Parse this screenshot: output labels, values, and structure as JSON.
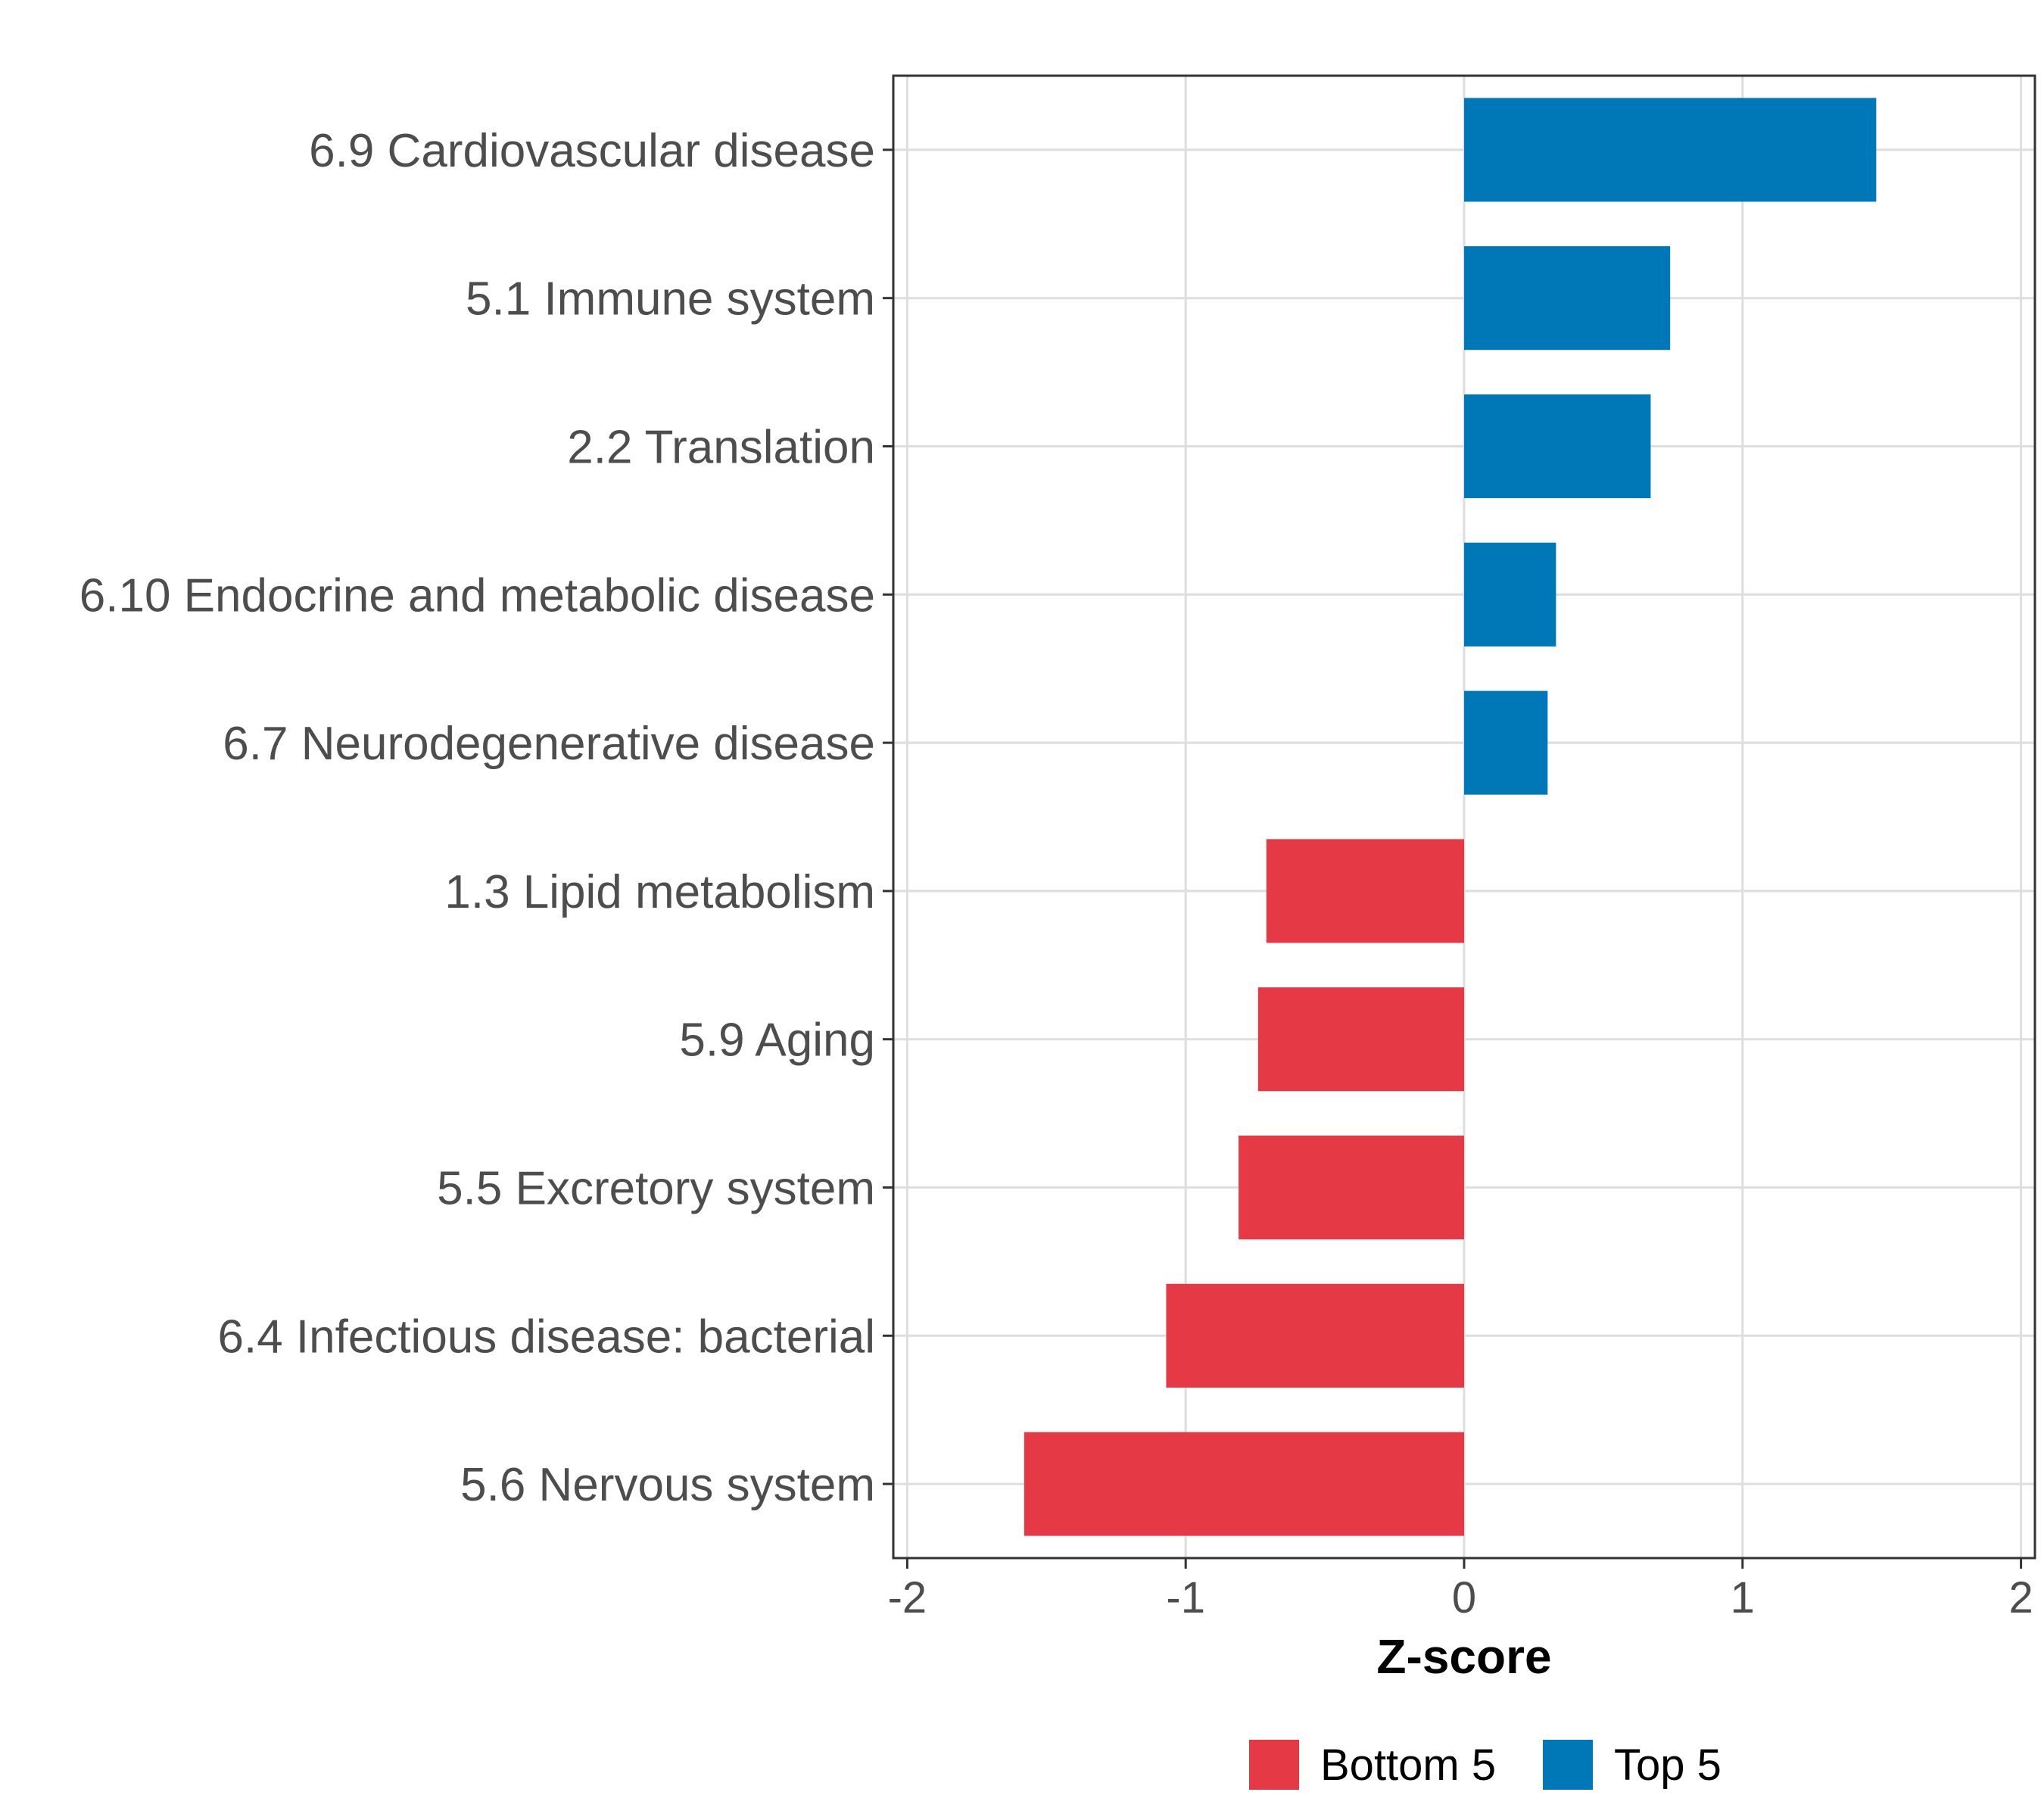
{
  "chart_data": {
    "type": "bar",
    "orientation": "horizontal",
    "title": "",
    "xlabel": "Z-score",
    "ylabel": "",
    "xlim": [
      -2.05,
      2.05
    ],
    "xticks": [
      -2,
      -1,
      0,
      1,
      2
    ],
    "xtick_labels": [
      "-2",
      "-1",
      "0",
      "1",
      "2"
    ],
    "grid": true,
    "legend_position": "bottom",
    "categories": [
      "6.9 Cardiovascular disease",
      "5.1 Immune system",
      "2.2 Translation",
      "6.10 Endocrine and metabolic disease",
      "6.7 Neurodegenerative disease",
      "1.3 Lipid metabolism",
      "5.9 Aging",
      "5.5 Excretory system",
      "6.4 Infectious disease: bacterial",
      "5.6 Nervous system"
    ],
    "values": [
      1.48,
      0.74,
      0.67,
      0.33,
      0.3,
      -0.71,
      -0.74,
      -0.81,
      -1.07,
      -1.58
    ],
    "groups": [
      "Top 5",
      "Top 5",
      "Top 5",
      "Top 5",
      "Top 5",
      "Bottom 5",
      "Bottom 5",
      "Bottom 5",
      "Bottom 5",
      "Bottom 5"
    ],
    "legend": [
      {
        "name": "Bottom 5",
        "color": "#e63946"
      },
      {
        "name": "Top 5",
        "color": "#0077b6"
      }
    ]
  }
}
